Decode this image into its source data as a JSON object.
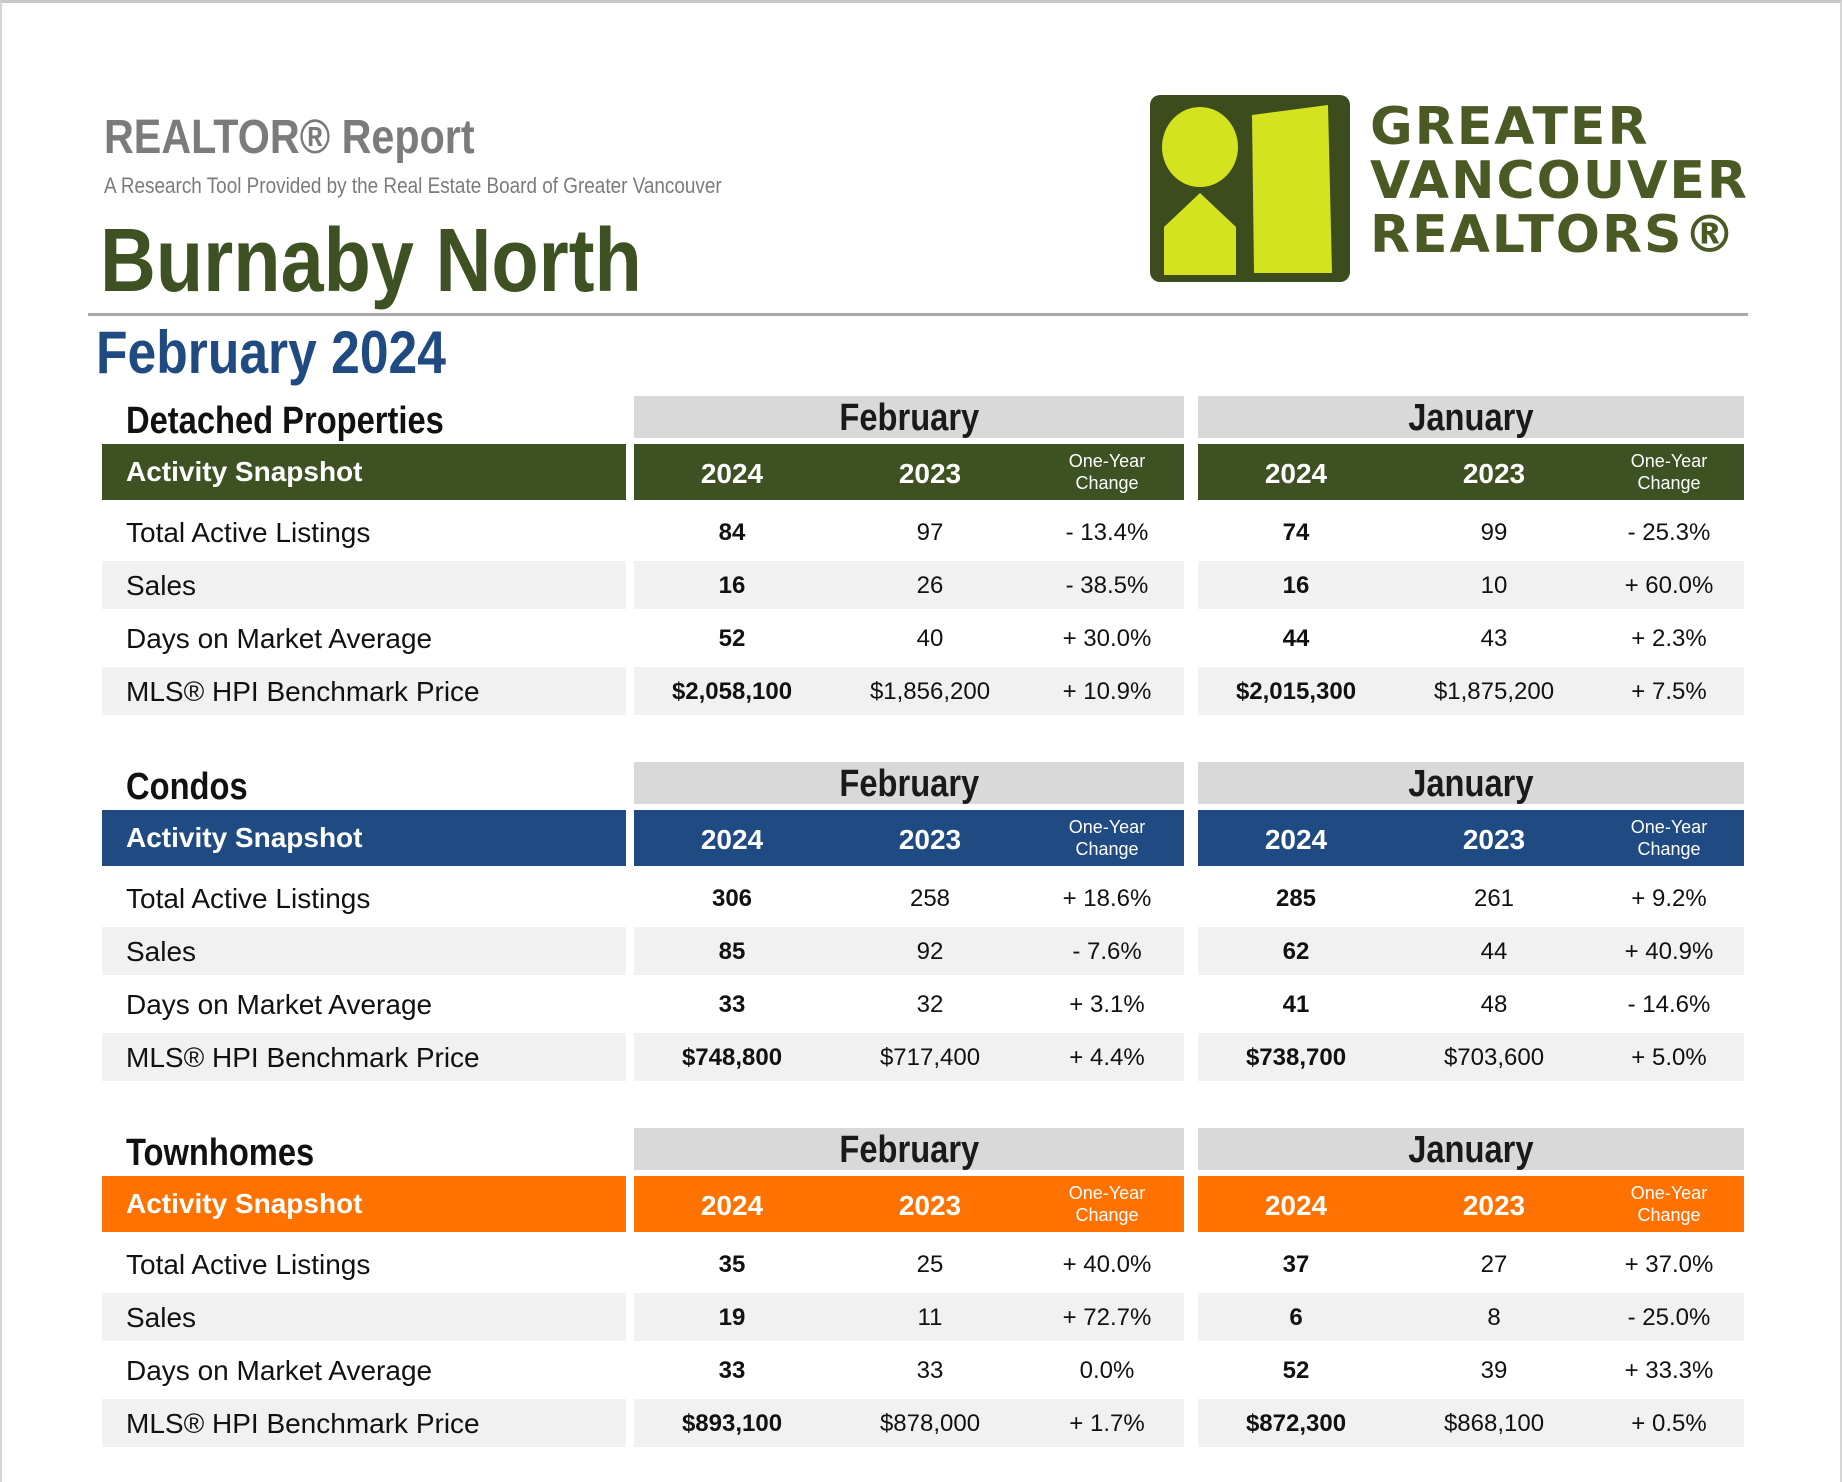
{
  "header": {
    "report_title": "REALTOR® Report",
    "report_subtitle": "A Research Tool Provided by the Real Estate Board of Greater Vancouver",
    "area_name": "Burnaby North",
    "period": "February 2024"
  },
  "logo": {
    "line1": "GREATER",
    "line2": "VANCOUVER",
    "line3": "REALTORS®",
    "colors": {
      "mark_frame": "#3d4c1c",
      "mark_fill": "#d4e320",
      "text": "#4b5a25"
    }
  },
  "columns": {
    "feb_month": "February",
    "jan_month": "January",
    "year_current": "2024",
    "year_prior": "2023",
    "change_line1": "One-Year",
    "change_line2": "Change",
    "bar_label": "Activity Snapshot"
  },
  "sections": [
    {
      "title": "Detached Properties",
      "color": "#3e5122",
      "rows": [
        {
          "label": "Total Active Listings",
          "feb_2024": "84",
          "feb_2023": "97",
          "feb_change": "- 13.4%",
          "jan_2024": "74",
          "jan_2023": "99",
          "jan_change": "- 25.3%"
        },
        {
          "label": "Sales",
          "feb_2024": "16",
          "feb_2023": "26",
          "feb_change": "- 38.5%",
          "jan_2024": "16",
          "jan_2023": "10",
          "jan_change": "+ 60.0%"
        },
        {
          "label": "Days on Market Average",
          "feb_2024": "52",
          "feb_2023": "40",
          "feb_change": "+ 30.0%",
          "jan_2024": "44",
          "jan_2023": "43",
          "jan_change": "+ 2.3%"
        },
        {
          "label": "MLS® HPI Benchmark Price",
          "feb_2024": "$2,058,100",
          "feb_2023": "$1,856,200",
          "feb_change": "+ 10.9%",
          "jan_2024": "$2,015,300",
          "jan_2023": "$1,875,200",
          "jan_change": "+ 7.5%"
        }
      ]
    },
    {
      "title": "Condos",
      "color": "#1f4a82",
      "rows": [
        {
          "label": "Total Active Listings",
          "feb_2024": "306",
          "feb_2023": "258",
          "feb_change": "+ 18.6%",
          "jan_2024": "285",
          "jan_2023": "261",
          "jan_change": "+ 9.2%"
        },
        {
          "label": "Sales",
          "feb_2024": "85",
          "feb_2023": "92",
          "feb_change": "- 7.6%",
          "jan_2024": "62",
          "jan_2023": "44",
          "jan_change": "+ 40.9%"
        },
        {
          "label": "Days on Market Average",
          "feb_2024": "33",
          "feb_2023": "32",
          "feb_change": "+ 3.1%",
          "jan_2024": "41",
          "jan_2023": "48",
          "jan_change": "- 14.6%"
        },
        {
          "label": "MLS® HPI Benchmark Price",
          "feb_2024": "$748,800",
          "feb_2023": "$717,400",
          "feb_change": "+ 4.4%",
          "jan_2024": "$738,700",
          "jan_2023": "$703,600",
          "jan_change": "+ 5.0%"
        }
      ]
    },
    {
      "title": "Townhomes",
      "color": "#ff7100",
      "rows": [
        {
          "label": "Total Active Listings",
          "feb_2024": "35",
          "feb_2023": "25",
          "feb_change": "+ 40.0%",
          "jan_2024": "37",
          "jan_2023": "27",
          "jan_change": "+ 37.0%"
        },
        {
          "label": "Sales",
          "feb_2024": "19",
          "feb_2023": "11",
          "feb_change": "+ 72.7%",
          "jan_2024": "6",
          "jan_2023": "8",
          "jan_change": "- 25.0%"
        },
        {
          "label": "Days on Market Average",
          "feb_2024": "33",
          "feb_2023": "33",
          "feb_change": "0.0%",
          "jan_2024": "52",
          "jan_2023": "39",
          "jan_change": "+ 33.3%"
        },
        {
          "label": "MLS® HPI Benchmark Price",
          "feb_2024": "$893,100",
          "feb_2023": "$878,000",
          "feb_change": "+ 1.7%",
          "jan_2024": "$872,300",
          "jan_2023": "$868,100",
          "jan_change": "+ 0.5%"
        }
      ]
    }
  ]
}
